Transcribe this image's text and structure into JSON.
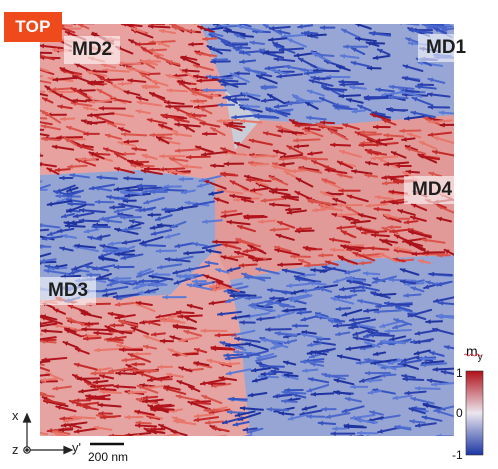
{
  "badge": {
    "text": "TOP",
    "color": "#ee4a1b"
  },
  "domains": [
    {
      "label": "MD1"
    },
    {
      "label": "MD2"
    },
    {
      "label": "MD3"
    },
    {
      "label": "MD4"
    }
  ],
  "colorbar": {
    "title": "m",
    "subscript": "y",
    "max_label": "1",
    "mid_label": "0",
    "min_label": "-1",
    "colors": {
      "positive": "#c0141a",
      "neutral": "#e8e4ea",
      "negative": "#1e3aa8"
    }
  },
  "axes": {
    "x_label": "x",
    "y_label": "y'",
    "z_label": "z"
  },
  "scale_bar": {
    "label": "200 nm"
  }
}
